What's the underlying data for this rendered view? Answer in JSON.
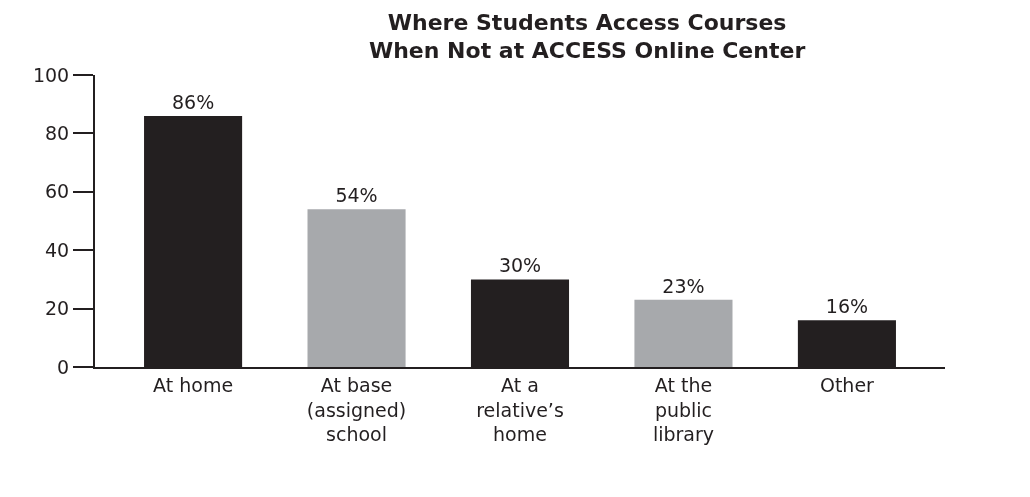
{
  "chart_data": {
    "type": "bar",
    "title": "Where Students Access Courses\nWhen Not at ACCESS Online Center",
    "categories": [
      "At home",
      "At base\n(assigned)\nschool",
      "At a\nrelative’s\nhome",
      "At the\npublic\nlibrary",
      "Other"
    ],
    "values": [
      86,
      54,
      30,
      23,
      16
    ],
    "colors": [
      "#231f20",
      "#a7a9ac",
      "#231f20",
      "#a7a9ac",
      "#231f20"
    ],
    "value_labels": [
      "86%",
      "54%",
      "30%",
      "23%",
      "16%"
    ],
    "ylim": [
      0,
      100
    ],
    "yticks": [
      0,
      20,
      40,
      60,
      80,
      100
    ]
  }
}
